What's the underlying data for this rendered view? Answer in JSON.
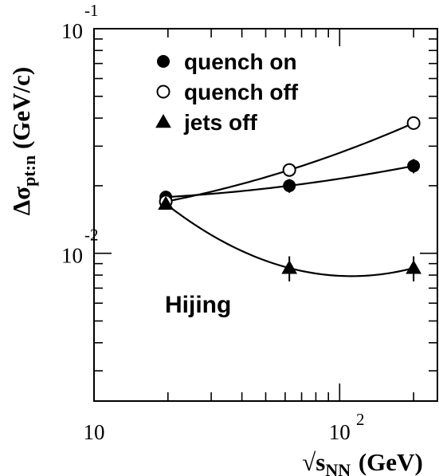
{
  "chart_data": {
    "type": "scatter",
    "title": "",
    "xlabel": {
      "prefix": "√",
      "main": "s",
      "sub": "NN",
      "suffix": " (GeV)"
    },
    "ylabel": {
      "main": "Δσ",
      "sub": "pt:n",
      "suffix": " (GeV/c)"
    },
    "xscale": "log",
    "yscale": "log",
    "xlim": [
      10,
      250
    ],
    "ylim": [
      0.0022,
      0.1
    ],
    "x_ticks": [
      {
        "base": "10",
        "exp": ""
      },
      {
        "base": "10",
        "exp": "2"
      }
    ],
    "y_ticks": [
      {
        "base": "10",
        "exp": "-2"
      },
      {
        "base": "10",
        "exp": "-1"
      }
    ],
    "annotation": "Hijing",
    "legend_position": "top-center",
    "series": [
      {
        "name": "quench on",
        "marker": "filled-circle",
        "x": [
          19.6,
          62.4,
          200
        ],
        "y": [
          0.0178,
          0.02,
          0.0245
        ],
        "yerr": [
          0.0008,
          0.0014,
          0.0018
        ]
      },
      {
        "name": "quench off",
        "marker": "open-circle",
        "x": [
          19.6,
          62.4,
          200
        ],
        "y": [
          0.017,
          0.0235,
          0.038
        ],
        "yerr": [
          0.0005,
          0.0007,
          0.0009
        ]
      },
      {
        "name": "jets off",
        "marker": "filled-triangle",
        "x": [
          19.6,
          62.4,
          200
        ],
        "y": [
          0.0166,
          0.0086,
          0.0086
        ],
        "yerr": [
          0.0004,
          0.0011,
          0.0011
        ]
      }
    ]
  }
}
